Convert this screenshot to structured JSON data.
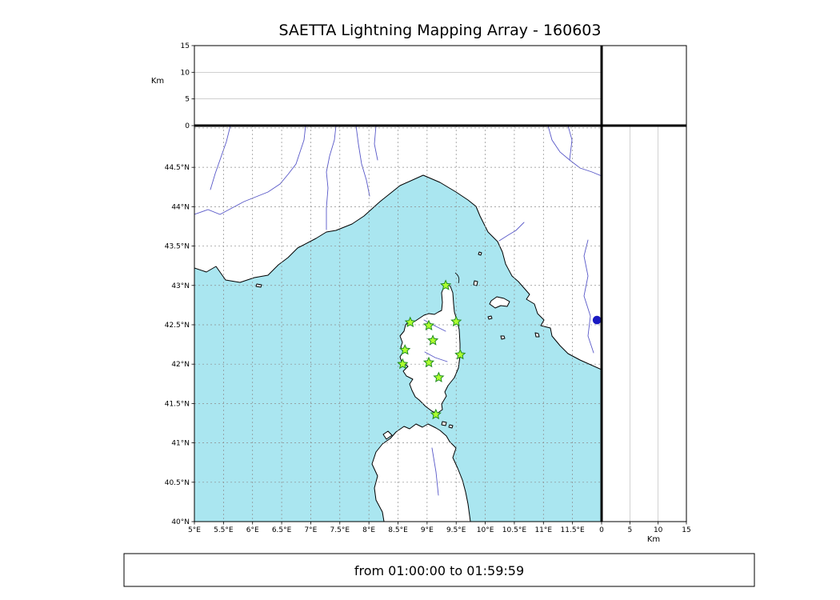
{
  "title": "SAETTA Lightning Mapping Array - 160603",
  "footer": {
    "time_range": "from 01:00:00 to 01:59:59"
  },
  "colors": {
    "sea": "#aae6f0",
    "land": "#ffffff",
    "coastline": "#000000",
    "river": "#5858c8",
    "grid": "#8c8c8c",
    "station_fill": "#adff2f",
    "station_edge": "#1f8c1f",
    "source_dot": "#1a1ac2"
  },
  "chart_data": {
    "type": "scatter",
    "title": "SAETTA Lightning Mapping Array - 160603",
    "time_window": "from 01:00:00 to 01:59:59",
    "panels": {
      "map": {
        "lon_range": [
          5,
          12
        ],
        "lat_range": [
          40,
          45.03
        ],
        "lon_ticks": [
          5,
          5.5,
          6,
          6.5,
          7,
          7.5,
          8,
          8.5,
          9,
          9.5,
          10,
          10.5,
          11,
          11.5
        ],
        "lon_tick_labels": [
          "5°E",
          "5.5°E",
          "6°E",
          "6.5°E",
          "7°E",
          "7.5°E",
          "8°E",
          "8.5°E",
          "9°E",
          "9.5°E",
          "10°E",
          "10.5°E",
          "11°E",
          "11.5°E"
        ],
        "lat_ticks": [
          40,
          40.5,
          41,
          41.5,
          42,
          42.5,
          43,
          43.5,
          44,
          44.5
        ],
        "lat_tick_labels": [
          "40°N",
          "40.5°N",
          "41°N",
          "41.5°N",
          "42°N",
          "42.5°N",
          "43°N",
          "43.5°N",
          "44°N",
          "44.5°N"
        ],
        "grid_style": "dashed"
      },
      "altitude_top": {
        "axis_label": "Km",
        "range": [
          0,
          15
        ],
        "ticks": [
          0,
          5,
          10,
          15
        ],
        "tick_labels": [
          "0",
          "5",
          "10",
          "15"
        ],
        "data_points": []
      },
      "altitude_right": {
        "axis_label": "Km",
        "range": [
          0,
          15
        ],
        "ticks": [
          0,
          5,
          10,
          15
        ],
        "tick_labels": [
          "0",
          "5",
          "10",
          "15"
        ],
        "data_points": []
      }
    },
    "stations": [
      {
        "lon": 9.32,
        "lat": 43.0
      },
      {
        "lon": 8.71,
        "lat": 42.53
      },
      {
        "lon": 9.03,
        "lat": 42.49
      },
      {
        "lon": 9.5,
        "lat": 42.54
      },
      {
        "lon": 9.1,
        "lat": 42.3
      },
      {
        "lon": 8.62,
        "lat": 42.18
      },
      {
        "lon": 9.57,
        "lat": 42.12
      },
      {
        "lon": 8.58,
        "lat": 42.0
      },
      {
        "lon": 9.03,
        "lat": 42.02
      },
      {
        "lon": 9.2,
        "lat": 41.83
      },
      {
        "lon": 9.15,
        "lat": 41.36
      }
    ],
    "sources": [
      {
        "lon": 11.92,
        "lat": 42.56
      }
    ]
  }
}
